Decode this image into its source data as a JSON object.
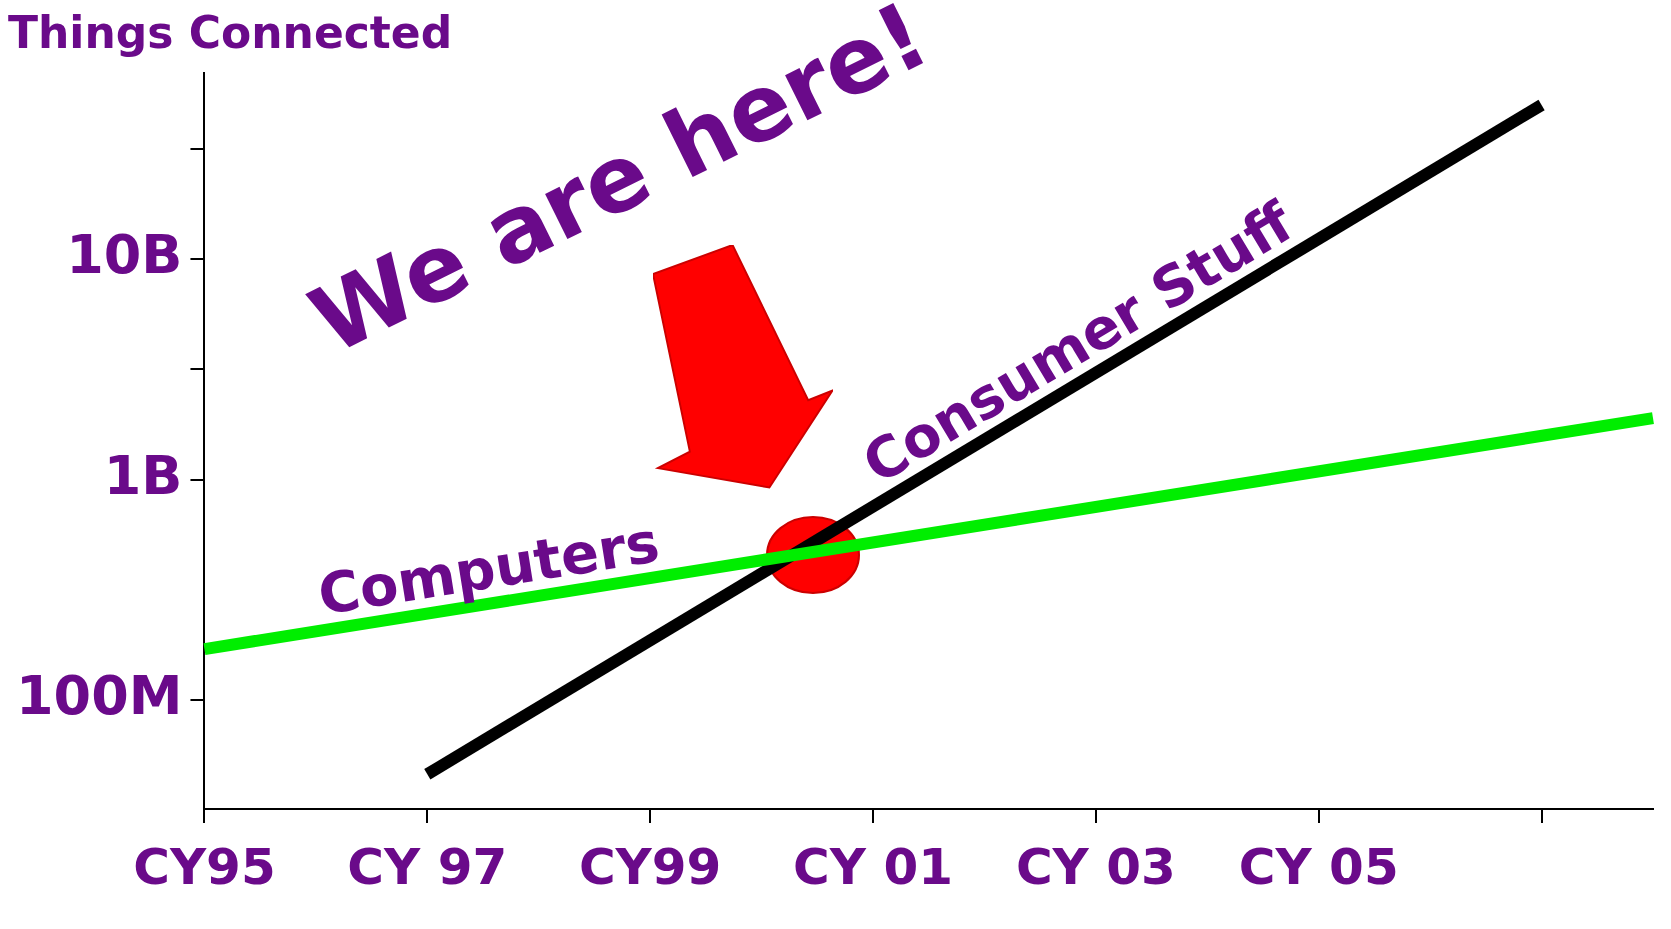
{
  "chart_data": {
    "type": "line",
    "title": "Things Connected",
    "categories": [
      "CY95",
      null,
      "CY 97",
      null,
      "CY99",
      null,
      "CY 01",
      null,
      "CY 03",
      null,
      "CY 05",
      null,
      null,
      null
    ],
    "ylim": [
      32000000,
      70000000000
    ],
    "yticks": [
      {
        "value": 100000000,
        "label": "100M"
      },
      {
        "value": 1000000000,
        "label": "1B"
      },
      {
        "value": 3160000000,
        "label": null
      },
      {
        "value": 10000000000,
        "label": "10B"
      },
      {
        "value": 31600000000,
        "label": null
      }
    ],
    "log": "y",
    "grid": false,
    "legend": false,
    "marker": "none",
    "line_style": "solid",
    "series": [
      {
        "name": "Computers",
        "color": "#00ee00",
        "values": [
          170000000,
          null,
          null,
          null,
          null,
          null,
          null,
          null,
          null,
          null,
          null,
          null,
          null,
          1900000000
        ]
      },
      {
        "name": "Consumer Stuff",
        "color": "#000000",
        "values": [
          null,
          null,
          46000000,
          null,
          null,
          null,
          null,
          null,
          null,
          null,
          null,
          null,
          50000000000,
          null
        ]
      }
    ],
    "annotations": [
      "We are here!"
    ]
  }
}
